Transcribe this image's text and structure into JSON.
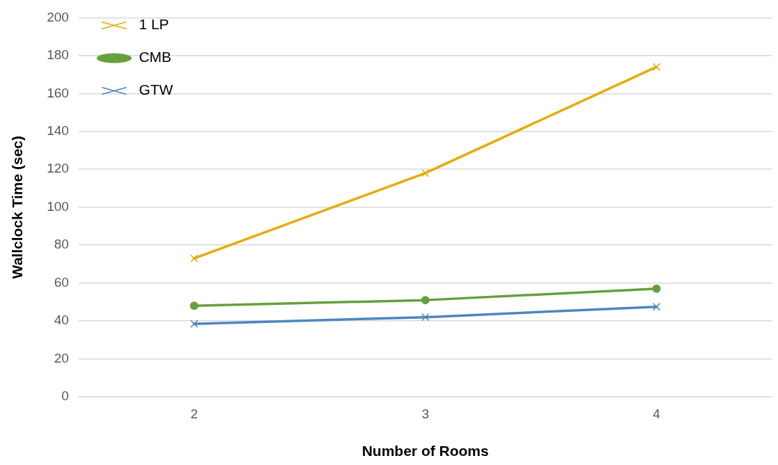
{
  "chart_data": {
    "type": "line",
    "xlabel": "Number of Rooms",
    "ylabel": "Wallclock Time (sec)",
    "categories": [
      "2",
      "3",
      "4"
    ],
    "series": [
      {
        "name": "1 LP",
        "color": "#e4ac07",
        "values": [
          73,
          118,
          174
        ],
        "marker": "cross"
      },
      {
        "name": "CMB",
        "color": "#65a03e",
        "values": [
          48,
          51,
          57
        ],
        "marker": "circle"
      },
      {
        "name": "GTW",
        "color": "#4d86c0",
        "values": [
          38.5,
          42,
          47.5
        ],
        "marker": "cross"
      }
    ],
    "ylim": [
      0,
      200
    ],
    "yticks": [
      0,
      20,
      40,
      60,
      80,
      100,
      120,
      140,
      160,
      180,
      200
    ],
    "grid": "y",
    "legend": "top left",
    "line_style": "solid"
  }
}
